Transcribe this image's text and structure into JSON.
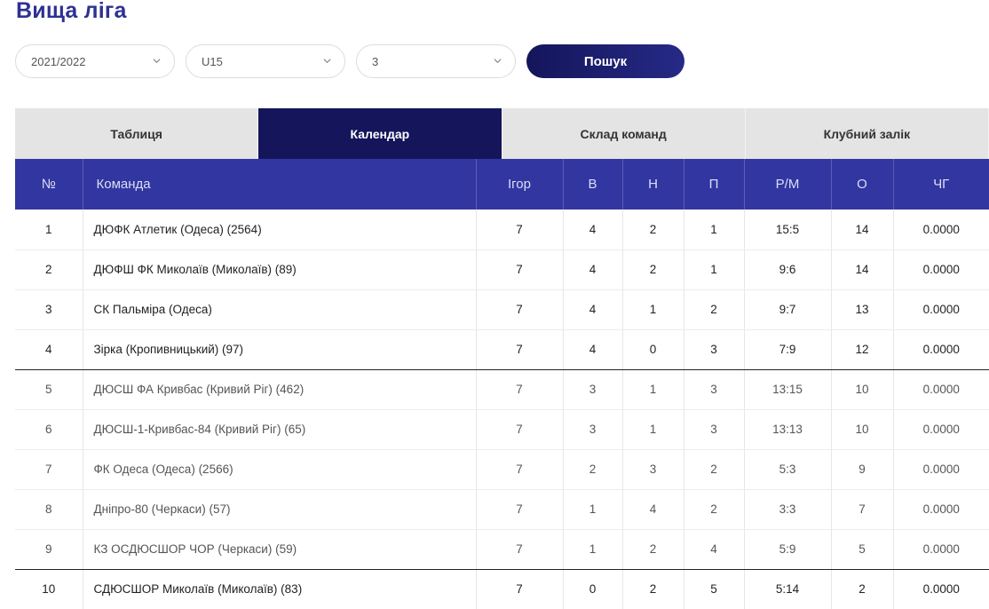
{
  "page": {
    "title": "Вища ліга"
  },
  "filters": {
    "season": "2021/2022",
    "age": "U15",
    "group": "3",
    "search_label": "Пошук"
  },
  "tabs": [
    {
      "label": "Таблиця",
      "active": false
    },
    {
      "label": "Календар",
      "active": true
    },
    {
      "label": "Склад команд",
      "active": false
    },
    {
      "label": "Клубний залік",
      "active": false
    }
  ],
  "table": {
    "headers": [
      "№",
      "Команда",
      "Ігор",
      "В",
      "Н",
      "П",
      "Р/М",
      "О",
      "ЧГ"
    ],
    "rows": [
      [
        "1",
        "ДЮФК Атлетик (Одеса) (2564)",
        "7",
        "4",
        "2",
        "1",
        "15:5",
        "14",
        "0.0000"
      ],
      [
        "2",
        "ДЮФШ ФК Миколаїв (Миколаїв) (89)",
        "7",
        "4",
        "2",
        "1",
        "9:6",
        "14",
        "0.0000"
      ],
      [
        "3",
        "СК Пальміра (Одеса)",
        "7",
        "4",
        "1",
        "2",
        "9:7",
        "13",
        "0.0000"
      ],
      [
        "4",
        "Зірка (Кропивницький) (97)",
        "7",
        "4",
        "0",
        "3",
        "7:9",
        "12",
        "0.0000"
      ],
      [
        "5",
        "ДЮСШ ФА Кривбас (Кривий Ріг) (462)",
        "7",
        "3",
        "1",
        "3",
        "13:15",
        "10",
        "0.0000"
      ],
      [
        "6",
        "ДЮСШ-1-Кривбас-84 (Кривий Ріг) (65)",
        "7",
        "3",
        "1",
        "3",
        "13:13",
        "10",
        "0.0000"
      ],
      [
        "7",
        "ФК Одеса (Одеса) (2566)",
        "7",
        "2",
        "3",
        "2",
        "5:3",
        "9",
        "0.0000"
      ],
      [
        "8",
        "Дніпро-80 (Черкаси) (57)",
        "7",
        "1",
        "4",
        "2",
        "3:3",
        "7",
        "0.0000"
      ],
      [
        "9",
        "КЗ ОСДЮСШОР ЧОР (Черкаси) (59)",
        "7",
        "1",
        "2",
        "4",
        "5:9",
        "5",
        "0.0000"
      ],
      [
        "10",
        "СДЮСШОР Миколаїв (Миколаїв) (83)",
        "7",
        "0",
        "2",
        "5",
        "5:14",
        "2",
        "0.0000"
      ]
    ]
  }
}
